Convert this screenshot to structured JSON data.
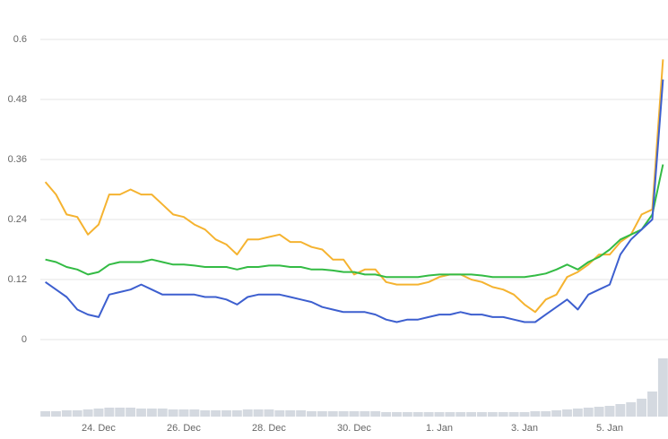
{
  "chart_data": [
    {
      "type": "line",
      "categories": [
        null,
        null,
        null,
        null,
        null,
        "24. Dec",
        null,
        null,
        null,
        null,
        null,
        null,
        null,
        "26. Dec",
        null,
        null,
        null,
        null,
        null,
        null,
        null,
        "28. Dec",
        null,
        null,
        null,
        null,
        null,
        null,
        null,
        "30. Dec",
        null,
        null,
        null,
        null,
        null,
        null,
        null,
        "1. Jan",
        null,
        null,
        null,
        null,
        null,
        null,
        null,
        "3. Jan",
        null,
        null,
        null,
        null,
        null,
        null,
        null,
        "5. Jan",
        null,
        null,
        null,
        null,
        null
      ],
      "ylim": [
        0,
        0.6
      ],
      "yticks": [
        0,
        0.12,
        0.24,
        0.36,
        0.48,
        0.6
      ],
      "grid": true,
      "series": [
        {
          "color": "#f5b330",
          "values": [
            0.315,
            0.29,
            0.25,
            0.245,
            0.21,
            0.23,
            0.29,
            0.29,
            0.3,
            0.29,
            0.29,
            0.27,
            0.25,
            0.245,
            0.23,
            0.22,
            0.2,
            0.19,
            0.17,
            0.2,
            0.2,
            0.205,
            0.21,
            0.195,
            0.195,
            0.185,
            0.18,
            0.16,
            0.16,
            0.13,
            0.14,
            0.14,
            0.115,
            0.11,
            0.11,
            0.11,
            0.115,
            0.125,
            0.13,
            0.13,
            0.12,
            0.115,
            0.105,
            0.1,
            0.09,
            0.07,
            0.055,
            0.08,
            0.09,
            0.125,
            0.135,
            0.15,
            0.17,
            0.17,
            0.195,
            0.21,
            0.25,
            0.26,
            0.56
          ]
        },
        {
          "color": "#33bb44",
          "values": [
            0.16,
            0.155,
            0.145,
            0.14,
            0.13,
            0.135,
            0.15,
            0.155,
            0.155,
            0.155,
            0.16,
            0.155,
            0.15,
            0.15,
            0.148,
            0.145,
            0.145,
            0.145,
            0.14,
            0.145,
            0.145,
            0.148,
            0.148,
            0.145,
            0.145,
            0.14,
            0.14,
            0.138,
            0.135,
            0.135,
            0.13,
            0.13,
            0.125,
            0.125,
            0.125,
            0.125,
            0.128,
            0.13,
            0.13,
            0.13,
            0.13,
            0.128,
            0.125,
            0.125,
            0.125,
            0.125,
            0.128,
            0.132,
            0.14,
            0.15,
            0.14,
            0.155,
            0.165,
            0.18,
            0.2,
            0.21,
            0.22,
            0.25,
            0.35
          ]
        },
        {
          "color": "#3d5fcf",
          "values": [
            0.115,
            0.1,
            0.085,
            0.06,
            0.05,
            0.045,
            0.09,
            0.095,
            0.1,
            0.11,
            0.1,
            0.09,
            0.09,
            0.09,
            0.09,
            0.085,
            0.085,
            0.08,
            0.07,
            0.085,
            0.09,
            0.09,
            0.09,
            0.085,
            0.08,
            0.075,
            0.065,
            0.06,
            0.055,
            0.055,
            0.055,
            0.05,
            0.04,
            0.035,
            0.04,
            0.04,
            0.045,
            0.05,
            0.05,
            0.055,
            0.05,
            0.05,
            0.045,
            0.045,
            0.04,
            0.035,
            0.035,
            0.05,
            0.065,
            0.08,
            0.06,
            0.09,
            0.1,
            0.11,
            0.17,
            0.2,
            0.22,
            0.24,
            0.52
          ]
        }
      ]
    },
    {
      "type": "bar",
      "color": "#d4d9e0",
      "ylim": [
        0,
        65
      ],
      "values": [
        6,
        6,
        7,
        7,
        8,
        9,
        10,
        10,
        10,
        9,
        9,
        9,
        8,
        8,
        8,
        7,
        7,
        7,
        7,
        8,
        8,
        8,
        7,
        7,
        7,
        6,
        6,
        6,
        6,
        6,
        6,
        6,
        5,
        5,
        5,
        5,
        5,
        5,
        5,
        5,
        5,
        5,
        5,
        5,
        5,
        5,
        6,
        6,
        7,
        8,
        9,
        10,
        11,
        12,
        14,
        16,
        20,
        28,
        65
      ]
    }
  ]
}
